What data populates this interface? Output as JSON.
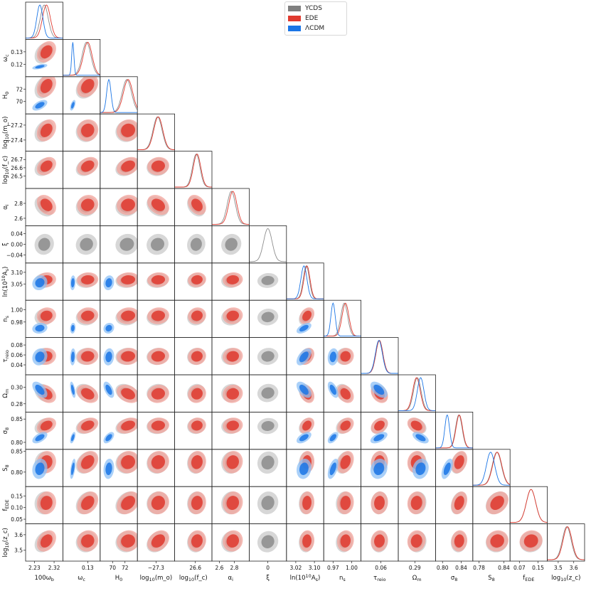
{
  "chart_data": {
    "type": "triangle",
    "legend": [
      {
        "name": "YCDS",
        "color": "#7f7f7f"
      },
      {
        "name": "EDE",
        "color": "#e03a2f"
      },
      {
        "name": "ΛCDM",
        "color": "#1a75e6"
      }
    ],
    "parameters": [
      {
        "id": "wb",
        "label": "100ω_b",
        "range": [
          2.19,
          2.36
        ],
        "ticks": [
          2.23,
          2.32
        ],
        "tick_labels": [
          "2.23",
          "2.32"
        ],
        "means": {
          "YCDS": 2.275,
          "EDE": 2.285,
          "LCDM": 2.255
        },
        "sigmas": {
          "YCDS": 0.018,
          "EDE": 0.018,
          "LCDM": 0.014
        }
      },
      {
        "id": "wc",
        "label": "ω_c",
        "range": [
          0.11,
          0.14
        ],
        "ticks": [
          0.12,
          0.13
        ],
        "tick_labels": [
          "0.12",
          "0.13"
        ],
        "means": {
          "YCDS": 0.129,
          "EDE": 0.13,
          "LCDM": 0.118
        },
        "sigmas": {
          "YCDS": 0.0035,
          "EDE": 0.0035,
          "LCDM": 0.0009
        }
      },
      {
        "id": "H0",
        "label": "H_0",
        "range": [
          68,
          74
        ],
        "ticks": [
          70,
          72
        ],
        "tick_labels": [
          "70",
          "72"
        ],
        "means": {
          "YCDS": 72.3,
          "EDE": 72.5,
          "LCDM": 69.4
        },
        "sigmas": {
          "YCDS": 0.75,
          "EDE": 0.75,
          "LCDM": 0.35
        }
      },
      {
        "id": "lmo",
        "label": "log_10(m_o)",
        "range": [
          -27.55,
          -27.05
        ],
        "ticks": [
          -27.4,
          -27.2
        ],
        "tick_labels": [
          "−27.4",
          "−27.2"
        ],
        "means": {
          "YCDS": -27.28,
          "EDE": -27.27
        },
        "sigmas": {
          "YCDS": 0.06,
          "EDE": 0.06
        }
      },
      {
        "id": "lfc",
        "label": "log_10(f_c)",
        "range": [
          26.35,
          26.8
        ],
        "ticks": [
          26.5,
          26.6,
          26.7
        ],
        "tick_labels": [
          "26.5",
          "26.6",
          "26.7"
        ],
        "means": {
          "YCDS": 26.61,
          "EDE": 26.62
        },
        "sigmas": {
          "YCDS": 0.045,
          "EDE": 0.045
        }
      },
      {
        "id": "ai",
        "label": "α_i",
        "range": [
          2.5,
          3.0
        ],
        "ticks": [
          2.6,
          2.8
        ],
        "tick_labels": [
          "2.6",
          "2.8"
        ],
        "means": {
          "YCDS": 2.76,
          "EDE": 2.78
        },
        "sigmas": {
          "YCDS": 0.055,
          "EDE": 0.055
        }
      },
      {
        "id": "xi",
        "label": "ξ",
        "range": [
          -0.07,
          0.07
        ],
        "ticks": [
          -0.04,
          0.0,
          0.04
        ],
        "tick_labels": [
          "−0.04",
          "0.00",
          "0.04"
        ],
        "means": {
          "YCDS": 0.0
        },
        "sigmas": {
          "YCDS": 0.016
        }
      },
      {
        "id": "As",
        "label": "ln(10^10 A_s)",
        "range": [
          2.98,
          3.14
        ],
        "ticks": [
          3.05,
          3.1
        ],
        "tick_labels": [
          "3.05",
          "3.10"
        ],
        "means": {
          "YCDS": 3.065,
          "EDE": 3.068,
          "LCDM": 3.055
        },
        "sigmas": {
          "YCDS": 0.013,
          "EDE": 0.013,
          "LCDM": 0.013
        }
      },
      {
        "id": "ns",
        "label": "n_s",
        "range": [
          0.955,
          1.015
        ],
        "ticks": [
          0.98,
          1.0
        ],
        "tick_labels": [
          "0.98",
          "1.00"
        ],
        "means": {
          "YCDS": 0.988,
          "EDE": 0.99,
          "LCDM": 0.97
        },
        "sigmas": {
          "YCDS": 0.0055,
          "EDE": 0.0055,
          "LCDM": 0.0035
        }
      },
      {
        "id": "tau",
        "label": "τ_reio",
        "range": [
          0.02,
          0.095
        ],
        "ticks": [
          0.04,
          0.06,
          0.08
        ],
        "tick_labels": [
          "0.04",
          "0.06",
          "0.08"
        ],
        "means": {
          "YCDS": 0.057,
          "EDE": 0.057,
          "LCDM": 0.056
        },
        "sigmas": {
          "YCDS": 0.007,
          "EDE": 0.007,
          "LCDM": 0.007
        }
      },
      {
        "id": "Om",
        "label": "Ω_m",
        "range": [
          0.27,
          0.315
        ],
        "ticks": [
          0.28,
          0.3
        ],
        "tick_labels": [
          "0.28",
          "0.30"
        ],
        "means": {
          "YCDS": 0.293,
          "EDE": 0.292,
          "LCDM": 0.297
        },
        "sigmas": {
          "YCDS": 0.0045,
          "EDE": 0.0045,
          "LCDM": 0.004
        }
      },
      {
        "id": "s8",
        "label": "σ_8",
        "range": [
          0.785,
          0.865
        ],
        "ticks": [
          0.8,
          0.85
        ],
        "tick_labels": [
          "0.80",
          "0.85"
        ],
        "means": {
          "YCDS": 0.835,
          "EDE": 0.836,
          "LCDM": 0.81
        },
        "sigmas": {
          "YCDS": 0.007,
          "EDE": 0.007,
          "LCDM": 0.005
        }
      },
      {
        "id": "S8",
        "label": "S_8",
        "range": [
          0.765,
          0.855
        ],
        "ticks": [
          0.8,
          0.85
        ],
        "tick_labels": [
          "0.80",
          "0.85"
        ],
        "means": {
          "YCDS": 0.823,
          "EDE": 0.824,
          "LCDM": 0.808
        },
        "sigmas": {
          "YCDS": 0.011,
          "EDE": 0.011,
          "LCDM": 0.01
        }
      },
      {
        "id": "fede",
        "label": "f_EDE",
        "range": [
          0.03,
          0.19
        ],
        "ticks": [
          0.05,
          0.1,
          0.15
        ],
        "tick_labels": [
          "0.05",
          "0.10",
          "0.15"
        ],
        "means": {
          "YCDS": 0.12,
          "EDE": 0.12
        },
        "sigmas": {
          "YCDS": 0.02,
          "EDE": 0.02
        }
      },
      {
        "id": "zc",
        "label": "log_10(z_c)",
        "range": [
          3.43,
          3.67
        ],
        "ticks": [
          3.5,
          3.6
        ],
        "tick_labels": [
          "3.5",
          "3.6"
        ],
        "means": {
          "YCDS": 3.555,
          "EDE": 3.56
        },
        "sigmas": {
          "YCDS": 0.028,
          "EDE": 0.028
        }
      }
    ],
    "bottom_tick_labels": [
      "2.23",
      "2.32",
      "0.13",
      "70",
      "72",
      "−27.3",
      "26.6",
      "2.6",
      "2.8",
      "0",
      "3.02",
      "3.10",
      "0.97",
      "1.00",
      "0.06",
      "0.29",
      "0.80",
      "0.84",
      "0.78",
      "0.84",
      "0.07",
      "0.15",
      "3.5",
      "3.6"
    ],
    "grid": false,
    "legend_position": "top-center"
  }
}
